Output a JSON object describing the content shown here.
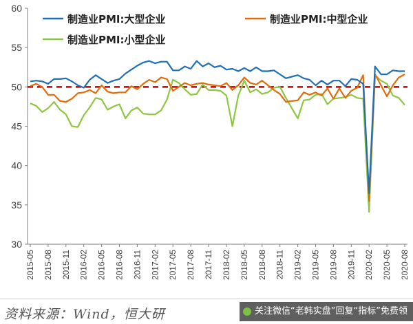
{
  "chart_data": {
    "type": "line",
    "title": "",
    "xlabel": "",
    "ylabel": "",
    "ylim": [
      30,
      60
    ],
    "yticks": [
      "30",
      "35",
      "40",
      "45",
      "50",
      "55",
      "60"
    ],
    "categories": [
      "2015-05",
      "2015-06",
      "2015-07",
      "2015-08",
      "2015-09",
      "2015-10",
      "2015-11",
      "2015-12",
      "2016-01",
      "2016-02",
      "2016-03",
      "2016-04",
      "2016-05",
      "2016-06",
      "2016-07",
      "2016-08",
      "2016-09",
      "2016-10",
      "2016-11",
      "2016-12",
      "2017-01",
      "2017-02",
      "2017-03",
      "2017-04",
      "2017-05",
      "2017-06",
      "2017-07",
      "2017-08",
      "2017-09",
      "2017-10",
      "2017-11",
      "2017-12",
      "2018-01",
      "2018-02",
      "2018-03",
      "2018-04",
      "2018-05",
      "2018-06",
      "2018-07",
      "2018-08",
      "2018-09",
      "2018-10",
      "2018-11",
      "2018-12",
      "2019-01",
      "2019-02",
      "2019-03",
      "2019-04",
      "2019-05",
      "2019-06",
      "2019-07",
      "2019-08",
      "2019-09",
      "2019-10",
      "2019-11",
      "2019-12",
      "2020-01",
      "2020-02",
      "2020-03",
      "2020-04",
      "2020-05",
      "2020-06",
      "2020-07",
      "2020-08"
    ],
    "xtick_labels": [
      "2015-05",
      "2015-08",
      "2015-11",
      "2016-02",
      "2016-05",
      "2016-08",
      "2016-11",
      "2017-02",
      "2017-05",
      "2017-08",
      "2017-11",
      "2018-02",
      "2018-05",
      "2018-08",
      "2018-11",
      "2019-02",
      "2019-05",
      "2019-08",
      "2019-11",
      "2020-02",
      "2020-05",
      "2020-08"
    ],
    "reference_line": {
      "value": 50,
      "color": "#c00000",
      "style": "dashed"
    },
    "legend_position": "top-left",
    "series": [
      {
        "name": "制造业PMI:大型企业",
        "color": "#1f6fb5",
        "values": [
          50.7,
          50.8,
          50.7,
          50.4,
          51.0,
          51.0,
          51.1,
          50.7,
          50.2,
          49.9,
          50.9,
          51.5,
          51.0,
          50.5,
          50.8,
          51.0,
          51.7,
          52.2,
          52.7,
          53.1,
          53.3,
          53.0,
          53.2,
          53.2,
          52.1,
          52.1,
          52.6,
          52.3,
          53.3,
          52.6,
          53.0,
          52.5,
          52.7,
          52.2,
          52.3,
          52.0,
          52.4,
          52.0,
          52.5,
          52.0,
          52.0,
          52.1,
          51.6,
          51.1,
          51.3,
          51.5,
          51.1,
          50.9,
          50.2,
          50.8,
          50.3,
          50.8,
          50.8,
          50.1,
          51.0,
          50.9,
          50.4,
          36.5,
          52.6,
          51.6,
          51.6,
          52.1,
          52.0,
          52.0
        ]
      },
      {
        "name": "制造业PMI:中型企业",
        "color": "#e36c0a",
        "values": [
          50.1,
          50.4,
          50.0,
          49.0,
          49.0,
          48.2,
          48.1,
          48.5,
          49.2,
          49.3,
          49.6,
          49.2,
          50.2,
          49.4,
          49.2,
          49.3,
          49.3,
          50.1,
          49.7,
          50.4,
          50.9,
          50.6,
          51.2,
          51.0,
          49.5,
          50.0,
          50.5,
          50.2,
          50.4,
          50.5,
          50.3,
          50.2,
          50.1,
          50.5,
          49.6,
          50.2,
          51.2,
          50.5,
          50.3,
          50.8,
          50.2,
          49.6,
          49.1,
          48.1,
          48.2,
          48.3,
          49.3,
          49.0,
          49.3,
          48.9,
          49.8,
          48.5,
          49.8,
          48.6,
          49.5,
          49.9,
          51.5,
          35.5,
          51.6,
          50.2,
          48.8,
          50.2,
          51.2,
          51.6
        ]
      },
      {
        "name": "制造业PMI:小型企业",
        "color": "#8dc63f",
        "values": [
          47.9,
          47.6,
          46.8,
          47.3,
          48.1,
          47.1,
          46.5,
          45.0,
          44.9,
          46.4,
          47.4,
          48.6,
          48.4,
          47.1,
          47.5,
          47.8,
          46.0,
          47.0,
          47.4,
          46.6,
          46.5,
          46.5,
          47.0,
          48.4,
          50.9,
          50.5,
          49.7,
          49.0,
          49.1,
          50.3,
          49.6,
          49.6,
          49.5,
          48.9,
          45.0,
          48.9,
          50.8,
          49.3,
          49.7,
          49.1,
          49.3,
          49.9,
          50.0,
          48.6,
          47.3,
          46.0,
          48.3,
          48.4,
          49.0,
          49.1,
          47.8,
          48.5,
          48.6,
          48.7,
          49.0,
          48.6,
          48.5,
          34.1,
          51.5,
          50.8,
          50.4,
          48.9,
          48.6,
          47.7
        ]
      }
    ]
  },
  "footer": {
    "source": "资料来源：Wind，恒大研",
    "watermark": "关注微信“老韩实盘”回复“指标”免费领"
  }
}
